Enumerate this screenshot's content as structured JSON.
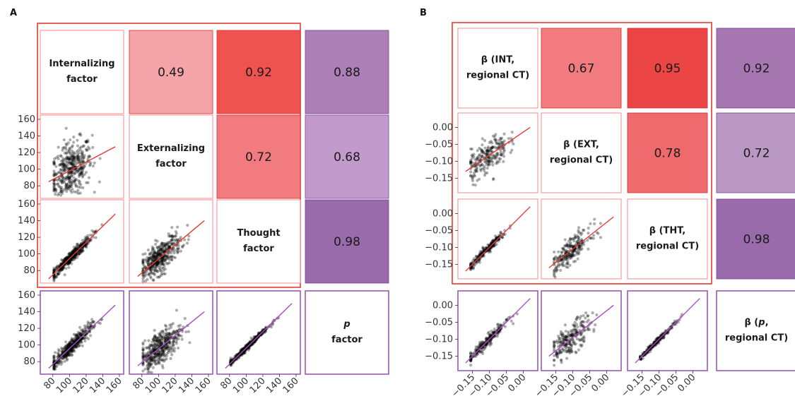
{
  "panels": [
    {
      "letter": "A",
      "diagonal": [
        {
          "lines": [
            "Internalizing",
            "factor"
          ]
        },
        {
          "lines": [
            "Externalizing",
            "factor"
          ]
        },
        {
          "lines": [
            "Thought",
            "factor"
          ]
        },
        {
          "lines": [
            "p",
            "factor"
          ],
          "italic_first": true
        }
      ],
      "correlations": [
        {
          "value": "0.49",
          "color": "#f4a4a8",
          "row": 0,
          "col": 1
        },
        {
          "value": "0.92",
          "color": "#ef5350",
          "row": 0,
          "col": 2
        },
        {
          "value": "0.72",
          "color": "#f17b7e",
          "row": 1,
          "col": 2
        }
      ],
      "p_correlations": [
        {
          "value": "0.88",
          "color": "#ac7fb6",
          "row": 0
        },
        {
          "value": "0.68",
          "color": "#c29acb",
          "row": 1
        },
        {
          "value": "0.98",
          "color": "#9a6bab",
          "row": 2
        }
      ],
      "y_ticks": [
        "160",
        "140",
        "120",
        "100",
        "80"
      ],
      "x_ticks": [
        "80",
        "100",
        "120",
        "140",
        "160"
      ],
      "axis_range": [
        70,
        160
      ]
    },
    {
      "letter": "B",
      "diagonal": [
        {
          "lines": [
            "β (INT,",
            "regional CT)"
          ]
        },
        {
          "lines": [
            "β (EXT,",
            "regional CT)"
          ]
        },
        {
          "lines": [
            "β (THT,",
            "regional CT)"
          ]
        },
        {
          "lines": [
            "β (p,",
            "regional CT)"
          ],
          "italic_p": true
        }
      ],
      "correlations": [
        {
          "value": "0.67",
          "color": "#f17b7e",
          "row": 0,
          "col": 1
        },
        {
          "value": "0.95",
          "color": "#ec4545",
          "row": 0,
          "col": 2
        },
        {
          "value": "0.78",
          "color": "#ef6a6d",
          "row": 1,
          "col": 2
        }
      ],
      "p_correlations": [
        {
          "value": "0.92",
          "color": "#a677b1",
          "row": 0
        },
        {
          "value": "0.72",
          "color": "#b998c4",
          "row": 1
        },
        {
          "value": "0.98",
          "color": "#9a6bab",
          "row": 2
        }
      ],
      "y_ticks": [
        "0.00",
        "−0.05",
        "−0.10",
        "−0.15"
      ],
      "x_ticks": [
        "−0.15",
        "−0.10",
        "−0.05",
        "0.00"
      ],
      "axis_range": [
        -0.18,
        0.03
      ]
    }
  ],
  "colors": {
    "red_border": "#e53935",
    "purple_border": "#9b59b6",
    "red_fit": "#e53935",
    "purple_fit": "#a64dbf",
    "point": "#000000"
  },
  "chart_data": [
    {
      "type": "scatter",
      "title": "A",
      "variables": [
        "Internalizing factor",
        "Externalizing factor",
        "Thought factor",
        "p factor"
      ],
      "correlations": [
        {
          "pair": [
            "Internalizing factor",
            "Externalizing factor"
          ],
          "r": 0.49
        },
        {
          "pair": [
            "Internalizing factor",
            "Thought factor"
          ],
          "r": 0.92
        },
        {
          "pair": [
            "Externalizing factor",
            "Thought factor"
          ],
          "r": 0.72
        },
        {
          "pair": [
            "Internalizing factor",
            "p factor"
          ],
          "r": 0.88
        },
        {
          "pair": [
            "Externalizing factor",
            "p factor"
          ],
          "r": 0.68
        },
        {
          "pair": [
            "Thought factor",
            "p factor"
          ],
          "r": 0.98
        }
      ],
      "x_range": [
        70,
        160
      ],
      "y_range": [
        70,
        160
      ],
      "xticks": [
        80,
        100,
        120,
        140,
        160
      ],
      "yticks": [
        80,
        100,
        120,
        140,
        160
      ],
      "scatter_panels": [
        {
          "x": "Internalizing factor",
          "y": "Externalizing factor",
          "fit": [
            [
              75,
              85
            ],
            [
              155,
              127
            ]
          ]
        },
        {
          "x": "Internalizing factor",
          "y": "Thought factor",
          "fit": [
            [
              75,
              70
            ],
            [
              155,
              148
            ]
          ]
        },
        {
          "x": "Externalizing factor",
          "y": "Thought factor",
          "fit": [
            [
              75,
              73
            ],
            [
              155,
              140
            ]
          ]
        },
        {
          "x": "Internalizing factor",
          "y": "p factor",
          "fit": [
            [
              75,
              72
            ],
            [
              155,
              148
            ]
          ]
        },
        {
          "x": "Externalizing factor",
          "y": "p factor",
          "fit": [
            [
              75,
              75
            ],
            [
              155,
              140
            ]
          ]
        },
        {
          "x": "Thought factor",
          "y": "p factor",
          "fit": [
            [
              75,
              72
            ],
            [
              155,
              150
            ]
          ]
        }
      ]
    },
    {
      "type": "scatter",
      "title": "B",
      "variables": [
        "β (INT, regional CT)",
        "β (EXT, regional CT)",
        "β (THT, regional CT)",
        "β (p, regional CT)"
      ],
      "correlations": [
        {
          "pair": [
            "β (INT, regional CT)",
            "β (EXT, regional CT)"
          ],
          "r": 0.67
        },
        {
          "pair": [
            "β (INT, regional CT)",
            "β (THT, regional CT)"
          ],
          "r": 0.95
        },
        {
          "pair": [
            "β (EXT, regional CT)",
            "β (THT, regional CT)"
          ],
          "r": 0.78
        },
        {
          "pair": [
            "β (INT, regional CT)",
            "β (p, regional CT)"
          ],
          "r": 0.92
        },
        {
          "pair": [
            "β (EXT, regional CT)",
            "β (p, regional CT)"
          ],
          "r": 0.72
        },
        {
          "pair": [
            "β (THT, regional CT)",
            "β (p, regional CT)"
          ],
          "r": 0.98
        }
      ],
      "x_range": [
        -0.18,
        0.03
      ],
      "y_range": [
        -0.18,
        0.03
      ],
      "xticks": [
        -0.15,
        -0.1,
        -0.05,
        0.0
      ],
      "yticks": [
        -0.15,
        -0.1,
        -0.05,
        0.0
      ],
      "scatter_panels": [
        {
          "x": "β (INT, regional CT)",
          "y": "β (EXT, regional CT)",
          "fit": [
            [
              -0.17,
              -0.13
            ],
            [
              0.02,
              0.0
            ]
          ]
        },
        {
          "x": "β (INT, regional CT)",
          "y": "β (THT, regional CT)",
          "fit": [
            [
              -0.17,
              -0.17
            ],
            [
              0.02,
              0.02
            ]
          ]
        },
        {
          "x": "β (EXT, regional CT)",
          "y": "β (THT, regional CT)",
          "fit": [
            [
              -0.17,
              -0.16
            ],
            [
              0.02,
              -0.01
            ]
          ]
        },
        {
          "x": "β (INT, regional CT)",
          "y": "β (p, regional CT)",
          "fit": [
            [
              -0.17,
              -0.17
            ],
            [
              0.02,
              0.02
            ]
          ]
        },
        {
          "x": "β (EXT, regional CT)",
          "y": "β (p, regional CT)",
          "fit": [
            [
              -0.17,
              -0.15
            ],
            [
              0.02,
              0.0
            ]
          ]
        },
        {
          "x": "β (THT, regional CT)",
          "y": "β (p, regional CT)",
          "fit": [
            [
              -0.17,
              -0.17
            ],
            [
              0.02,
              0.02
            ]
          ]
        }
      ]
    }
  ]
}
